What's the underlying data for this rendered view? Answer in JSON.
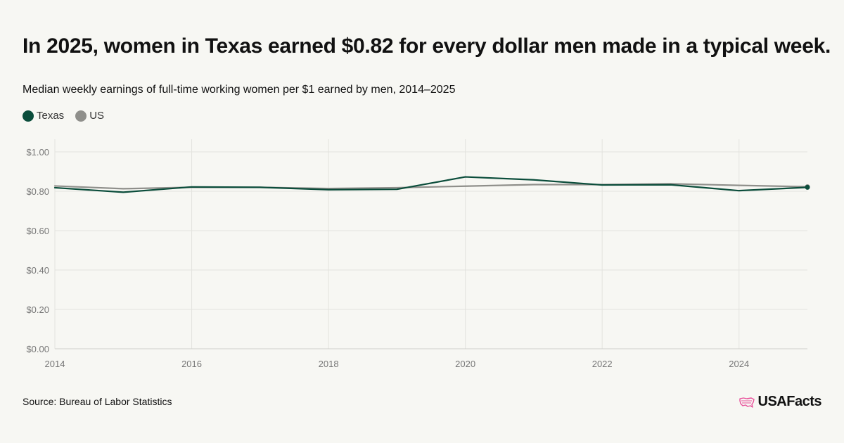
{
  "title": "In 2025, women in Texas earned $0.82 for every dollar men made in a typical week.",
  "subtitle": "Median weekly earnings of full-time working women per $1 earned by men, 2014–2025",
  "source": "Source: Bureau of Labor Statistics",
  "brand": {
    "name": "USAFacts",
    "logo_icon": "usa-map-icon",
    "logo_color": "#e8509a"
  },
  "colors": {
    "texas": "#0b4d3b",
    "us": "#8f8f8b",
    "grid": "#e3e3df",
    "axis_text": "#777777"
  },
  "chart_data": {
    "type": "line",
    "title": "Median weekly earnings of full-time working women per $1 earned by men, 2014–2025",
    "xlabel": "",
    "ylabel": "",
    "x": [
      2014,
      2015,
      2016,
      2017,
      2018,
      2019,
      2020,
      2021,
      2022,
      2023,
      2024,
      2025
    ],
    "xlim": [
      2014,
      2025
    ],
    "ylim": [
      0,
      1.0
    ],
    "x_ticks": [
      2014,
      2016,
      2018,
      2020,
      2022,
      2024
    ],
    "y_ticks": [
      0,
      0.2,
      0.4,
      0.6,
      0.8,
      1.0
    ],
    "y_tick_labels": [
      "$0.00",
      "$0.20",
      "$0.40",
      "$0.60",
      "$0.80",
      "$1.00"
    ],
    "grid": true,
    "legend": "top-left",
    "series": [
      {
        "name": "Texas",
        "color": "#0b4d3b",
        "values": [
          0.818,
          0.795,
          0.822,
          0.82,
          0.808,
          0.81,
          0.873,
          0.858,
          0.832,
          0.833,
          0.803,
          0.82
        ]
      },
      {
        "name": "US",
        "color": "#8f8f8b",
        "values": [
          0.827,
          0.813,
          0.82,
          0.82,
          0.814,
          0.818,
          0.826,
          0.834,
          0.834,
          0.838,
          0.83,
          0.823
        ]
      }
    ]
  }
}
